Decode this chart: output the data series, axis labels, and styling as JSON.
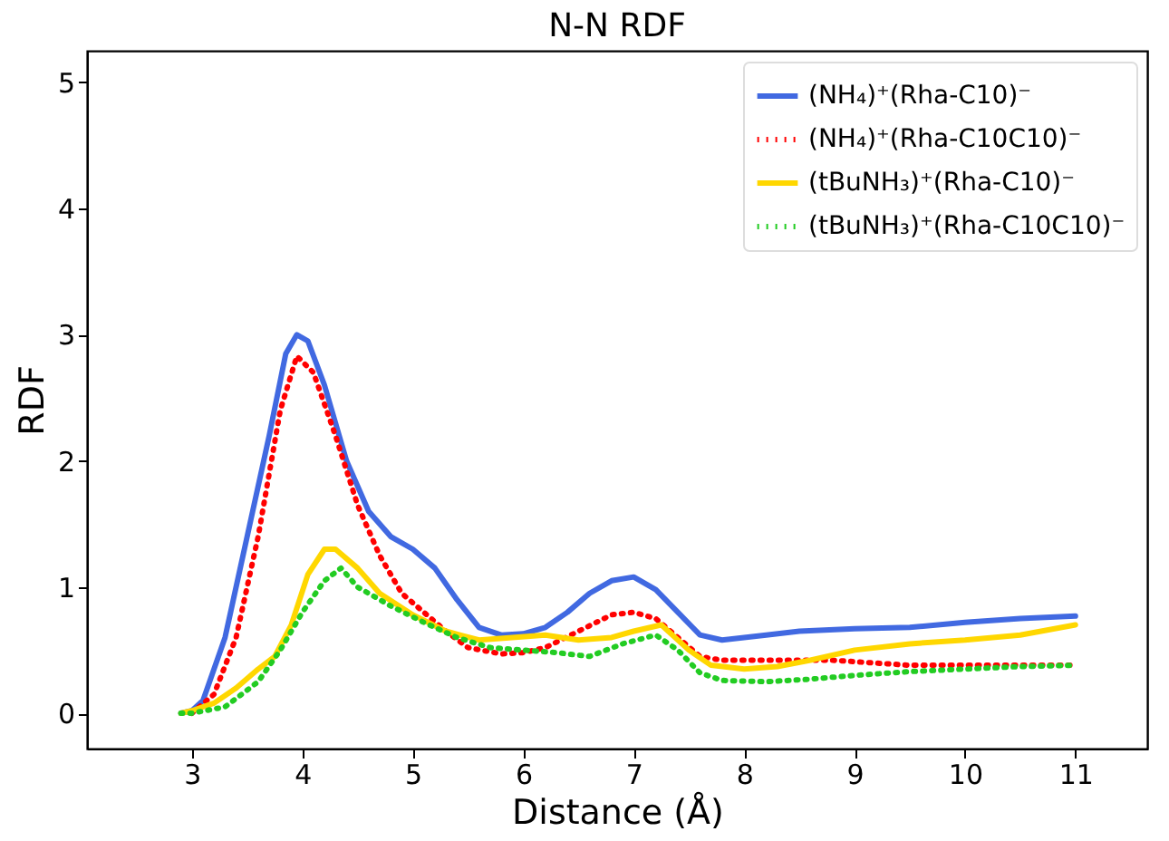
{
  "chart_data": {
    "type": "line",
    "title": "N-N RDF",
    "xlabel": "Distance (Å)",
    "ylabel": "RDF",
    "xlim": [
      2.05,
      11.65
    ],
    "xticks": [
      3,
      4,
      5,
      6,
      7,
      8,
      9,
      10,
      11
    ],
    "ylim": [
      -0.28,
      5.25
    ],
    "yticks": [
      0,
      1,
      2,
      3,
      4,
      5
    ],
    "grid": false,
    "legend": "top right",
    "marker": "none",
    "series": [
      {
        "name": "(NH₄)⁺(Rha-C10)⁻",
        "color": "#4169e1",
        "line_style": "solid",
        "x": [
          2.9,
          3.0,
          3.1,
          3.3,
          3.5,
          3.7,
          3.85,
          3.95,
          4.05,
          4.2,
          4.4,
          4.6,
          4.8,
          5.0,
          5.2,
          5.4,
          5.6,
          5.8,
          6.0,
          6.2,
          6.4,
          6.6,
          6.8,
          7.0,
          7.2,
          7.4,
          7.6,
          7.8,
          8.0,
          8.2,
          8.5,
          9.0,
          9.5,
          10.0,
          10.5,
          11.0
        ],
        "values": [
          0.0,
          0.02,
          0.1,
          0.6,
          1.4,
          2.2,
          2.85,
          3.0,
          2.95,
          2.6,
          2.0,
          1.6,
          1.4,
          1.3,
          1.15,
          0.9,
          0.68,
          0.62,
          0.63,
          0.68,
          0.8,
          0.95,
          1.05,
          1.08,
          0.98,
          0.8,
          0.62,
          0.58,
          0.6,
          0.62,
          0.65,
          0.67,
          0.68,
          0.72,
          0.75,
          0.77
        ]
      },
      {
        "name": "(NH₄)⁺(Rha-C10C10)⁻",
        "color": "#ff0000",
        "line_style": "dotted",
        "x": [
          3.0,
          3.2,
          3.4,
          3.6,
          3.8,
          3.95,
          4.1,
          4.3,
          4.5,
          4.7,
          4.9,
          5.1,
          5.3,
          5.5,
          5.8,
          6.0,
          6.2,
          6.5,
          6.8,
          7.0,
          7.2,
          7.4,
          7.6,
          7.8,
          8.2,
          8.8,
          9.5,
          10.0,
          10.5,
          11.0
        ],
        "values": [
          0.0,
          0.15,
          0.6,
          1.4,
          2.4,
          2.83,
          2.7,
          2.2,
          1.65,
          1.25,
          0.95,
          0.8,
          0.65,
          0.52,
          0.47,
          0.48,
          0.52,
          0.65,
          0.78,
          0.8,
          0.75,
          0.6,
          0.45,
          0.42,
          0.42,
          0.42,
          0.38,
          0.38,
          0.38,
          0.38
        ]
      },
      {
        "name": "(tBuNH₃)⁺(Rha-C10)⁻",
        "color": "#ffd700",
        "line_style": "solid",
        "x": [
          2.9,
          3.0,
          3.2,
          3.4,
          3.6,
          3.75,
          3.9,
          4.05,
          4.2,
          4.3,
          4.5,
          4.7,
          5.0,
          5.3,
          5.6,
          5.9,
          6.2,
          6.5,
          6.8,
          7.0,
          7.25,
          7.5,
          7.7,
          8.0,
          8.3,
          8.6,
          9.0,
          9.5,
          10.0,
          10.5,
          11.0
        ],
        "values": [
          0.0,
          0.02,
          0.08,
          0.2,
          0.35,
          0.45,
          0.7,
          1.1,
          1.3,
          1.3,
          1.15,
          0.95,
          0.78,
          0.65,
          0.58,
          0.6,
          0.62,
          0.58,
          0.6,
          0.65,
          0.7,
          0.5,
          0.38,
          0.35,
          0.37,
          0.42,
          0.5,
          0.55,
          0.58,
          0.62,
          0.7
        ]
      },
      {
        "name": "(tBuNH₃)⁺(Rha-C10C10)⁻",
        "color": "#22cc22",
        "line_style": "dotted",
        "x": [
          2.9,
          3.0,
          3.3,
          3.6,
          3.8,
          4.0,
          4.2,
          4.35,
          4.5,
          4.8,
          5.1,
          5.4,
          5.7,
          6.0,
          6.3,
          6.6,
          6.9,
          7.2,
          7.4,
          7.6,
          7.8,
          8.2,
          8.6,
          9.0,
          9.5,
          10.0,
          10.5,
          11.0
        ],
        "values": [
          0.0,
          0.0,
          0.05,
          0.25,
          0.5,
          0.8,
          1.05,
          1.15,
          1.0,
          0.85,
          0.72,
          0.6,
          0.52,
          0.5,
          0.48,
          0.45,
          0.55,
          0.62,
          0.5,
          0.32,
          0.26,
          0.25,
          0.27,
          0.3,
          0.33,
          0.35,
          0.37,
          0.38
        ]
      }
    ]
  }
}
